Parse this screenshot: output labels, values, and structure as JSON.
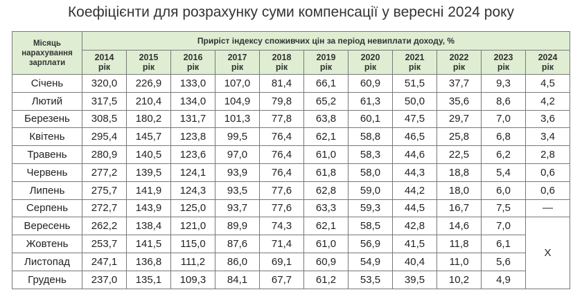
{
  "title": "Коефіцієнти для розрахунку суми компенсації у вересні 2024 року",
  "table": {
    "header": {
      "month": "Місяць\nнарахування\nзарплати",
      "group": "Приріст індексу споживчих цін за період невиплати доходу, %",
      "years": [
        "2014\nрік",
        "2015\nрік",
        "2016\nрік",
        "2017\nрік",
        "2018\nрік",
        "2019\nрік",
        "2020\nрік",
        "2021\nрік",
        "2022\nрік",
        "2023\nрік",
        "2024\nрік"
      ]
    },
    "rows": [
      {
        "month": "Січень",
        "values": [
          "320,0",
          "226,9",
          "133,0",
          "107,0",
          "81,4",
          "66,1",
          "60,9",
          "51,5",
          "37,7",
          "9,3",
          "4,5"
        ]
      },
      {
        "month": "Лютий",
        "values": [
          "317,5",
          "210,4",
          "134,0",
          "104,9",
          "79,8",
          "65,2",
          "61,3",
          "50,0",
          "35,6",
          "8,6",
          "4,2"
        ]
      },
      {
        "month": "Березень",
        "values": [
          "308,5",
          "180,2",
          "131,7",
          "101,3",
          "77,8",
          "63,8",
          "60,1",
          "47,5",
          "29,7",
          "7,0",
          "3,6"
        ]
      },
      {
        "month": "Квітень",
        "values": [
          "295,4",
          "145,7",
          "123,8",
          "99,5",
          "76,4",
          "62,1",
          "58,8",
          "46,5",
          "25,8",
          "6,8",
          "3,4"
        ]
      },
      {
        "month": "Травень",
        "values": [
          "280,9",
          "140,5",
          "123,6",
          "97,0",
          "76,4",
          "61,0",
          "58,3",
          "44,6",
          "22,5",
          "6,2",
          "2,8"
        ]
      },
      {
        "month": "Червень",
        "values": [
          "277,2",
          "139,5",
          "124,1",
          "93,9",
          "76,4",
          "61,8",
          "58,0",
          "44,3",
          "18,8",
          "5,4",
          "0,6"
        ]
      },
      {
        "month": "Липень",
        "values": [
          "275,7",
          "141,9",
          "124,3",
          "93,5",
          "77,6",
          "62,8",
          "59,0",
          "44,2",
          "18,0",
          "6,0",
          "0,6"
        ]
      },
      {
        "month": "Серпень",
        "values": [
          "272,7",
          "143,9",
          "125,0",
          "93,7",
          "77,6",
          "63,3",
          "59,3",
          "44,5",
          "16,7",
          "7,5",
          "—"
        ]
      },
      {
        "month": "Вересень",
        "values": [
          "262,2",
          "138,4",
          "121,0",
          "89,9",
          "74,3",
          "62,1",
          "58,5",
          "42,8",
          "14,6",
          "7,0"
        ]
      },
      {
        "month": "Жовтень",
        "values": [
          "253,7",
          "141,5",
          "115,0",
          "87,6",
          "71,4",
          "61,0",
          "56,9",
          "41,5",
          "11,8",
          "6,1"
        ]
      },
      {
        "month": "Листопад",
        "values": [
          "247,1",
          "136,8",
          "111,2",
          "86,0",
          "69,1",
          "60,9",
          "54,9",
          "40,4",
          "11,0",
          "5,6"
        ]
      },
      {
        "month": "Грудень",
        "values": [
          "237,0",
          "135,1",
          "109,3",
          "84,1",
          "67,7",
          "61,2",
          "53,5",
          "39,5",
          "10,2",
          "4,9"
        ]
      }
    ],
    "merged_cell": "X"
  }
}
